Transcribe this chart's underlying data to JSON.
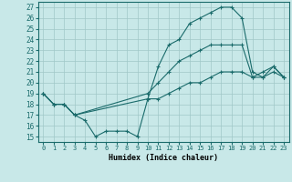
{
  "xlabel": "Humidex (Indice chaleur)",
  "background_color": "#c8e8e8",
  "grid_color": "#a0c8c8",
  "line_color": "#1a6b6b",
  "xlim": [
    -0.5,
    23.5
  ],
  "ylim": [
    14.5,
    27.5
  ],
  "yticks": [
    15,
    16,
    17,
    18,
    19,
    20,
    21,
    22,
    23,
    24,
    25,
    26,
    27
  ],
  "xticks": [
    0,
    1,
    2,
    3,
    4,
    5,
    6,
    7,
    8,
    9,
    10,
    11,
    12,
    13,
    14,
    15,
    16,
    17,
    18,
    19,
    20,
    21,
    22,
    23
  ],
  "line1_x": [
    0,
    1,
    2,
    3,
    4,
    5,
    6,
    7,
    8,
    9,
    10,
    11,
    12,
    13,
    14,
    15,
    16,
    17,
    18,
    19,
    20,
    21,
    22,
    23
  ],
  "line1_y": [
    19,
    18,
    18,
    17,
    16.5,
    15,
    15.5,
    15.5,
    15.5,
    15,
    18.5,
    21.5,
    23.5,
    24,
    25.5,
    26,
    26.5,
    27,
    27,
    26,
    21,
    20.5,
    21.5,
    20.5
  ],
  "line2_x": [
    0,
    1,
    2,
    3,
    10,
    11,
    12,
    13,
    14,
    15,
    16,
    17,
    18,
    19,
    20,
    21,
    22,
    23
  ],
  "line2_y": [
    19,
    18,
    18,
    17,
    19,
    20,
    21,
    22,
    22.5,
    23,
    23.5,
    23.5,
    23.5,
    23.5,
    20.5,
    21,
    21.5,
    20.5
  ],
  "line3_x": [
    0,
    1,
    2,
    3,
    10,
    11,
    12,
    13,
    14,
    15,
    16,
    17,
    18,
    19,
    20,
    21,
    22,
    23
  ],
  "line3_y": [
    19,
    18,
    18,
    17,
    18.5,
    18.5,
    19,
    19.5,
    20,
    20,
    20.5,
    21,
    21,
    21,
    20.5,
    20.5,
    21,
    20.5
  ]
}
